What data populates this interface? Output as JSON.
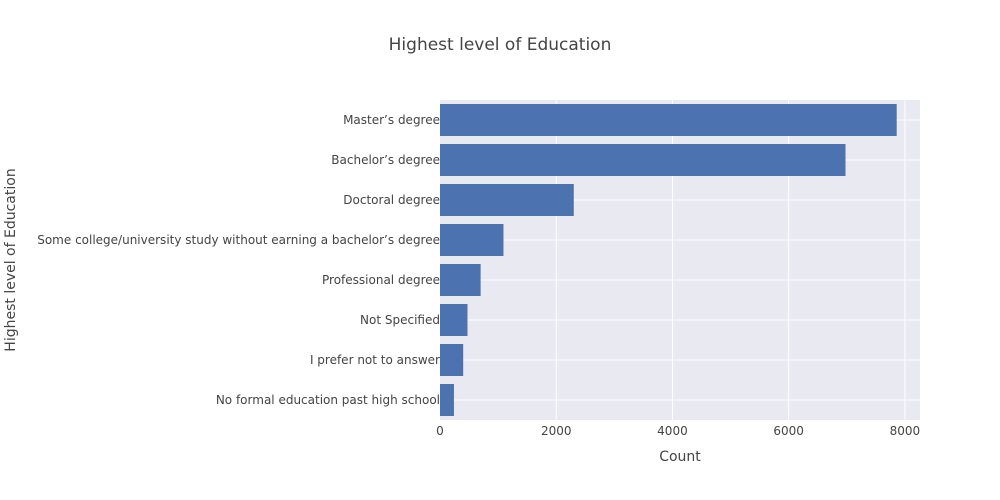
{
  "chart_data": {
    "type": "bar",
    "orientation": "horizontal",
    "title": "Highest level of Education",
    "xlabel": "Count",
    "ylabel": "Highest level of Education",
    "categories": [
      "Master’s degree",
      "Bachelor’s degree",
      "Doctoral degree",
      "Some college/university study without earning a bachelor’s degree",
      "Professional degree",
      "Not Specified",
      "I prefer not to answer",
      "No formal education past high school"
    ],
    "values": [
      7859,
      6978,
      2302,
      1092,
      699,
      473,
      399,
      240
    ],
    "xlim": [
      0,
      8260
    ],
    "xticks": [
      0,
      2000,
      4000,
      6000,
      8000
    ],
    "xtick_labels": [
      "0",
      "2000",
      "4000",
      "6000",
      "8000"
    ],
    "grid": true,
    "colors": {
      "bar": "#4c72b0",
      "plot_background": "#e9e9f2",
      "grid": "#ffffff"
    }
  }
}
